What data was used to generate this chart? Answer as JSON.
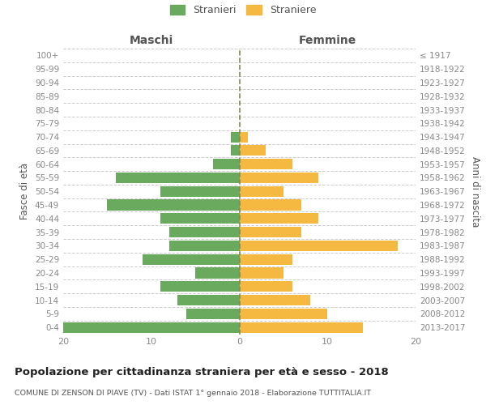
{
  "age_groups": [
    "0-4",
    "5-9",
    "10-14",
    "15-19",
    "20-24",
    "25-29",
    "30-34",
    "35-39",
    "40-44",
    "45-49",
    "50-54",
    "55-59",
    "60-64",
    "65-69",
    "70-74",
    "75-79",
    "80-84",
    "85-89",
    "90-94",
    "95-99",
    "100+"
  ],
  "birth_years": [
    "2013-2017",
    "2008-2012",
    "2003-2007",
    "1998-2002",
    "1993-1997",
    "1988-1992",
    "1983-1987",
    "1978-1982",
    "1973-1977",
    "1968-1972",
    "1963-1967",
    "1958-1962",
    "1953-1957",
    "1948-1952",
    "1943-1947",
    "1938-1942",
    "1933-1937",
    "1928-1932",
    "1923-1927",
    "1918-1922",
    "≤ 1917"
  ],
  "males": [
    20,
    6,
    7,
    9,
    5,
    11,
    8,
    8,
    9,
    15,
    9,
    14,
    3,
    1,
    1,
    0,
    0,
    0,
    0,
    0,
    0
  ],
  "females": [
    14,
    10,
    8,
    6,
    5,
    6,
    18,
    7,
    9,
    7,
    5,
    9,
    6,
    3,
    1,
    0,
    0,
    0,
    0,
    0,
    0
  ],
  "color_males": "#6aaa5f",
  "color_females": "#f5b942",
  "title": "Popolazione per cittadinanza straniera per età e sesso - 2018",
  "subtitle": "COMUNE DI ZENSON DI PIAVE (TV) - Dati ISTAT 1° gennaio 2018 - Elaborazione TUTTITALIA.IT",
  "label_maschi": "Maschi",
  "label_femmine": "Femmine",
  "ylabel_left": "Fasce di età",
  "ylabel_right": "Anni di nascita",
  "legend_males": "Stranieri",
  "legend_females": "Straniere",
  "xlim": 20,
  "background_color": "#ffffff",
  "grid_color": "#cccccc"
}
